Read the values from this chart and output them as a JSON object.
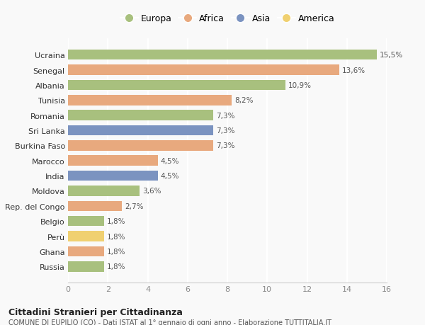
{
  "countries": [
    "Ucraina",
    "Senegal",
    "Albania",
    "Tunisia",
    "Romania",
    "Sri Lanka",
    "Burkina Faso",
    "Marocco",
    "India",
    "Moldova",
    "Rep. del Congo",
    "Belgio",
    "Perù",
    "Ghana",
    "Russia"
  ],
  "values": [
    15.5,
    13.6,
    10.9,
    8.2,
    7.3,
    7.3,
    7.3,
    4.5,
    4.5,
    3.6,
    2.7,
    1.8,
    1.8,
    1.8,
    1.8
  ],
  "labels": [
    "15,5%",
    "13,6%",
    "10,9%",
    "8,2%",
    "7,3%",
    "7,3%",
    "7,3%",
    "4,5%",
    "4,5%",
    "3,6%",
    "2,7%",
    "1,8%",
    "1,8%",
    "1,8%",
    "1,8%"
  ],
  "continents": [
    "Europa",
    "Africa",
    "Europa",
    "Africa",
    "Europa",
    "Asia",
    "Africa",
    "Africa",
    "Asia",
    "Europa",
    "Africa",
    "Europa",
    "America",
    "Africa",
    "Europa"
  ],
  "continent_colors": {
    "Europa": "#a8c07e",
    "Africa": "#e8a97e",
    "Asia": "#7b93c0",
    "America": "#f0d070"
  },
  "legend_order": [
    "Europa",
    "Africa",
    "Asia",
    "America"
  ],
  "title": "Cittadini Stranieri per Cittadinanza",
  "subtitle": "COMUNE DI EUPILIO (CO) - Dati ISTAT al 1° gennaio di ogni anno - Elaborazione TUTTITALIA.IT",
  "xlim": [
    0,
    16
  ],
  "xticks": [
    0,
    2,
    4,
    6,
    8,
    10,
    12,
    14,
    16
  ],
  "background_color": "#f9f9f9",
  "grid_color": "#ffffff",
  "bar_height": 0.68
}
